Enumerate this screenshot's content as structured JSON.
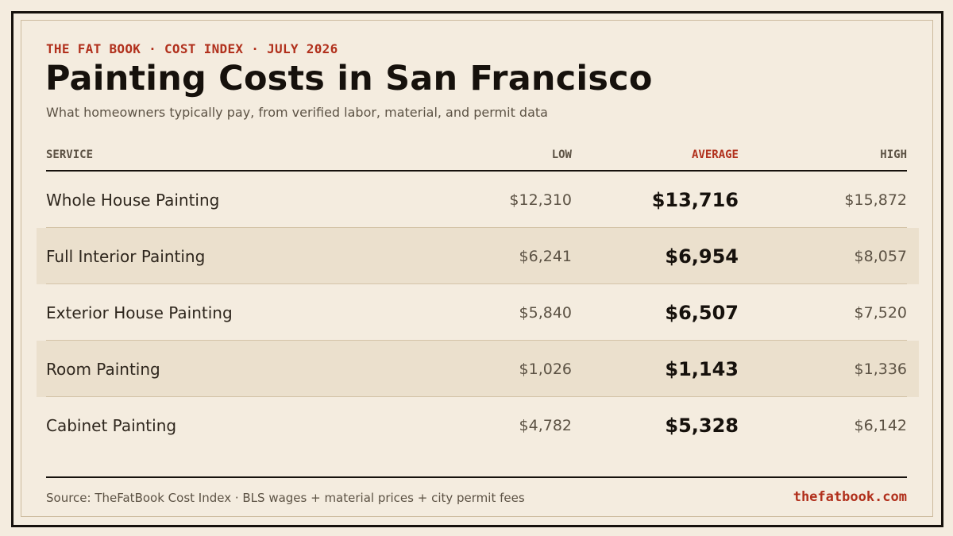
{
  "header": {
    "kicker": "THE FAT BOOK · COST INDEX · JULY 2026",
    "title": "Painting Costs in San Francisco",
    "subtitle": "What homeowners typically pay, from verified labor, material, and permit data"
  },
  "table": {
    "columns": {
      "service": "SERVICE",
      "low": "LOW",
      "average": "AVERAGE",
      "high": "HIGH"
    },
    "rows": [
      {
        "service": "Whole House Painting",
        "low": "$12,310",
        "average": "$13,716",
        "high": "$15,872"
      },
      {
        "service": "Full Interior Painting",
        "low": "$6,241",
        "average": "$6,954",
        "high": "$8,057"
      },
      {
        "service": "Exterior House Painting",
        "low": "$5,840",
        "average": "$6,507",
        "high": "$7,520"
      },
      {
        "service": "Room Painting",
        "low": "$1,026",
        "average": "$1,143",
        "high": "$1,336"
      },
      {
        "service": "Cabinet Painting",
        "low": "$4,782",
        "average": "$5,328",
        "high": "$6,142"
      }
    ]
  },
  "footer": {
    "source": "Source: TheFatBook Cost Index · BLS wages + material prices + city permit fees",
    "brand": "thefatbook.com"
  },
  "colors": {
    "background": "#f4ecdf",
    "accent": "#b1301c",
    "ink": "#16110c",
    "row_shade": "#ebe0cd"
  }
}
